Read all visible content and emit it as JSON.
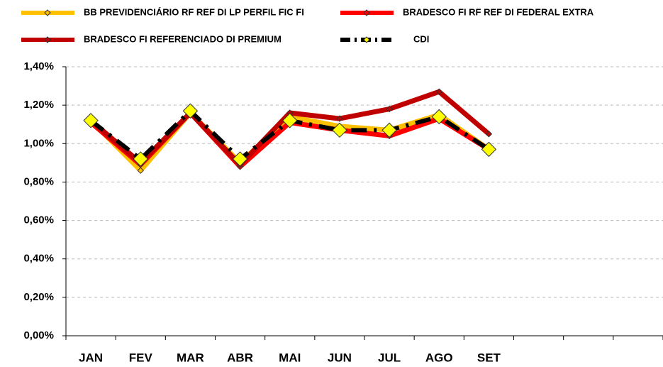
{
  "chart_data": {
    "type": "line",
    "categories": [
      "JAN",
      "FEV",
      "MAR",
      "ABR",
      "MAI",
      "JUN",
      "JUL",
      "AGO",
      "SET",
      null,
      null,
      null
    ],
    "series": [
      {
        "name": "BB PREVIDENCIÁRIO RF REF DI LP PERFIL FIC FI",
        "color": "#ffc000",
        "line_style": "solid",
        "marker_color": "#ffc000",
        "marker_size": "small",
        "values": [
          1.12,
          0.86,
          1.16,
          0.9,
          1.14,
          1.09,
          1.07,
          1.15,
          0.97,
          null,
          null,
          null
        ]
      },
      {
        "name": "BRADESCO FI RF REF DI FEDERAL EXTRA",
        "color": "#ff0000",
        "line_style": "solid",
        "marker_color": "#ff0000",
        "marker_size": "small",
        "values": [
          1.11,
          0.89,
          1.16,
          0.88,
          1.11,
          1.07,
          1.04,
          1.13,
          0.97,
          null,
          null,
          null
        ]
      },
      {
        "name": "BRADESCO FI REFERENCIADO DI PREMIUM",
        "color": "#c00000",
        "line_style": "solid",
        "marker_color": "#c00000",
        "marker_size": "small",
        "values": [
          1.12,
          0.9,
          1.16,
          0.89,
          1.16,
          1.13,
          1.18,
          1.27,
          1.05,
          null,
          null,
          null
        ]
      },
      {
        "name": "CDI",
        "color": "#000000",
        "line_style": "dashed",
        "marker_color": "#ffff00",
        "marker_size": "large",
        "values": [
          1.12,
          0.92,
          1.17,
          0.92,
          1.12,
          1.07,
          1.07,
          1.14,
          0.97,
          null,
          null,
          null
        ]
      }
    ],
    "ylim": [
      0,
      1.4
    ],
    "yticks": [
      {
        "value": 0,
        "label": "0,00%"
      },
      {
        "value": 0.2,
        "label": "0,20%"
      },
      {
        "value": 0.4,
        "label": "0,40%"
      },
      {
        "value": 0.6,
        "label": "0,60%"
      },
      {
        "value": 0.8,
        "label": "0,80%"
      },
      {
        "value": 1.0,
        "label": "1,00%"
      },
      {
        "value": 1.2,
        "label": "1,20%"
      },
      {
        "value": 1.4,
        "label": "1,40%"
      }
    ],
    "grid": true
  }
}
